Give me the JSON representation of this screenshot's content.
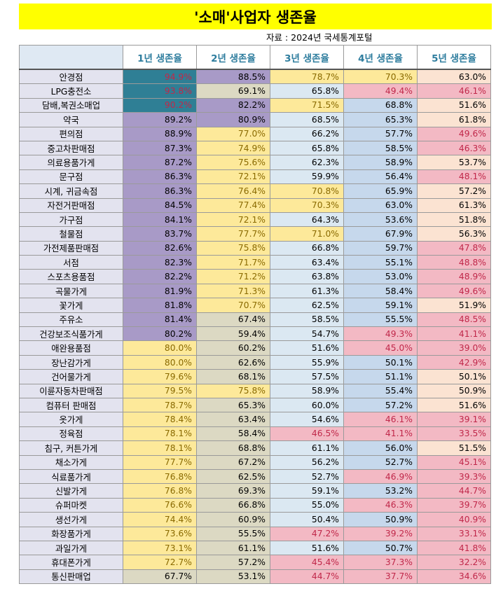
{
  "title": "'소매'사업자 생존율",
  "source": "자료 : 2024년 국세통계포털",
  "headers": [
    "",
    "1년 생존율",
    "2년 생존율",
    "3년 생존율",
    "4년 생존율",
    "5년 생존율"
  ],
  "colors": {
    "header_text": "#2e7d9e",
    "teal": "#2f7f95",
    "purple": "#a89ac7",
    "yellow": "#fde99a",
    "yellow_text": "#8a6a00",
    "light_blue": "#dbe8f2",
    "light_blue2": "#c6d8ec",
    "pink": "#f3b9c4",
    "pink_text": "#c0284a",
    "peach": "#fbe3d2",
    "beige": "#dcd9c3",
    "name_bg": "#e3e3ef"
  },
  "rows": [
    {
      "name": "안경점",
      "v": [
        "94.9%",
        "88.5%",
        "78.7%",
        "70.3%",
        "63.0%"
      ],
      "c": [
        "teal",
        "purple",
        "yellow",
        "yellow",
        "peach"
      ]
    },
    {
      "name": "LPG충전소",
      "v": [
        "93.8%",
        "69.1%",
        "65.8%",
        "49.4%",
        "46.1%"
      ],
      "c": [
        "teal",
        "beige",
        "light_blue",
        "pink",
        "pink"
      ]
    },
    {
      "name": "담배,복권소매업",
      "v": [
        "90.2%",
        "82.2%",
        "71.5%",
        "68.8%",
        "51.6%"
      ],
      "c": [
        "teal",
        "purple",
        "yellow",
        "light_blue2",
        "peach"
      ]
    },
    {
      "name": "약국",
      "v": [
        "89.2%",
        "80.9%",
        "68.5%",
        "65.3%",
        "61.8%"
      ],
      "c": [
        "purple",
        "purple",
        "light_blue",
        "light_blue2",
        "peach"
      ]
    },
    {
      "name": "편의점",
      "v": [
        "88.9%",
        "77.0%",
        "66.2%",
        "57.7%",
        "49.6%"
      ],
      "c": [
        "purple",
        "yellow",
        "light_blue",
        "light_blue2",
        "pink"
      ]
    },
    {
      "name": "중고차판매점",
      "v": [
        "87.3%",
        "74.9%",
        "65.8%",
        "58.5%",
        "46.3%"
      ],
      "c": [
        "purple",
        "yellow",
        "light_blue",
        "light_blue2",
        "pink"
      ]
    },
    {
      "name": "의료용품가게",
      "v": [
        "87.2%",
        "75.6%",
        "62.3%",
        "58.9%",
        "53.7%"
      ],
      "c": [
        "purple",
        "yellow",
        "light_blue",
        "light_blue2",
        "peach"
      ]
    },
    {
      "name": "문구점",
      "v": [
        "86.3%",
        "72.1%",
        "59.9%",
        "56.4%",
        "48.1%"
      ],
      "c": [
        "purple",
        "yellow",
        "light_blue",
        "light_blue2",
        "pink"
      ]
    },
    {
      "name": "시계, 귀금속점",
      "v": [
        "86.3%",
        "76.4%",
        "70.8%",
        "65.9%",
        "57.2%"
      ],
      "c": [
        "purple",
        "yellow",
        "yellow",
        "light_blue2",
        "peach"
      ]
    },
    {
      "name": "자전거판매점",
      "v": [
        "84.5%",
        "77.4%",
        "70.3%",
        "63.0%",
        "61.3%"
      ],
      "c": [
        "purple",
        "yellow",
        "yellow",
        "light_blue2",
        "peach"
      ]
    },
    {
      "name": "가구점",
      "v": [
        "84.1%",
        "72.1%",
        "64.3%",
        "53.6%",
        "51.8%"
      ],
      "c": [
        "purple",
        "yellow",
        "light_blue",
        "light_blue2",
        "peach"
      ]
    },
    {
      "name": "철물점",
      "v": [
        "83.7%",
        "77.7%",
        "71.0%",
        "67.9%",
        "56.3%"
      ],
      "c": [
        "purple",
        "yellow",
        "yellow",
        "light_blue2",
        "peach"
      ]
    },
    {
      "name": "가전제품판매점",
      "v": [
        "82.6%",
        "75.8%",
        "66.8%",
        "59.7%",
        "47.8%"
      ],
      "c": [
        "purple",
        "yellow",
        "light_blue",
        "light_blue2",
        "pink"
      ]
    },
    {
      "name": "서점",
      "v": [
        "82.3%",
        "71.7%",
        "63.4%",
        "55.1%",
        "48.8%"
      ],
      "c": [
        "purple",
        "yellow",
        "light_blue",
        "light_blue2",
        "pink"
      ]
    },
    {
      "name": "스포츠용품점",
      "v": [
        "82.2%",
        "71.2%",
        "63.8%",
        "53.0%",
        "48.9%"
      ],
      "c": [
        "purple",
        "yellow",
        "light_blue",
        "light_blue2",
        "pink"
      ]
    },
    {
      "name": "곡물가게",
      "v": [
        "81.9%",
        "71.3%",
        "61.3%",
        "58.4%",
        "49.6%"
      ],
      "c": [
        "purple",
        "yellow",
        "light_blue",
        "light_blue2",
        "pink"
      ]
    },
    {
      "name": "꽃가게",
      "v": [
        "81.8%",
        "70.7%",
        "62.5%",
        "59.1%",
        "51.9%"
      ],
      "c": [
        "purple",
        "yellow",
        "light_blue",
        "light_blue2",
        "peach"
      ]
    },
    {
      "name": "주유소",
      "v": [
        "81.4%",
        "67.4%",
        "58.5%",
        "55.5%",
        "48.5%"
      ],
      "c": [
        "purple",
        "beige",
        "light_blue",
        "light_blue2",
        "pink"
      ]
    },
    {
      "name": "건강보조식품가게",
      "v": [
        "80.2%",
        "59.4%",
        "54.7%",
        "49.3%",
        "41.1%"
      ],
      "c": [
        "purple",
        "beige",
        "light_blue",
        "pink",
        "pink"
      ]
    },
    {
      "name": "애완용품점",
      "v": [
        "80.0%",
        "60.2%",
        "51.6%",
        "45.0%",
        "39.0%"
      ],
      "c": [
        "yellow",
        "beige",
        "light_blue",
        "pink",
        "pink"
      ]
    },
    {
      "name": "장난감가게",
      "v": [
        "80.0%",
        "62.6%",
        "55.9%",
        "50.1%",
        "42.9%"
      ],
      "c": [
        "yellow",
        "beige",
        "light_blue",
        "light_blue2",
        "pink"
      ]
    },
    {
      "name": "건어물가게",
      "v": [
        "79.6%",
        "68.1%",
        "57.5%",
        "51.1%",
        "50.1%"
      ],
      "c": [
        "yellow",
        "beige",
        "light_blue",
        "light_blue2",
        "peach"
      ]
    },
    {
      "name": "이륜자동차판매점",
      "v": [
        "79.5%",
        "75.8%",
        "58.9%",
        "55.4%",
        "50.9%"
      ],
      "c": [
        "yellow",
        "yellow",
        "light_blue",
        "light_blue2",
        "peach"
      ]
    },
    {
      "name": "컴퓨터 판매점",
      "v": [
        "78.7%",
        "65.3%",
        "60.0%",
        "57.2%",
        "51.6%"
      ],
      "c": [
        "yellow",
        "beige",
        "light_blue",
        "light_blue2",
        "peach"
      ]
    },
    {
      "name": "옷가게",
      "v": [
        "78.4%",
        "63.4%",
        "54.6%",
        "46.1%",
        "39.1%"
      ],
      "c": [
        "yellow",
        "beige",
        "light_blue",
        "pink",
        "pink"
      ]
    },
    {
      "name": "정육점",
      "v": [
        "78.1%",
        "58.4%",
        "46.5%",
        "41.1%",
        "33.5%"
      ],
      "c": [
        "yellow",
        "beige",
        "pink",
        "pink",
        "pink"
      ]
    },
    {
      "name": "침구, 커튼가게",
      "v": [
        "78.1%",
        "68.8%",
        "61.1%",
        "56.0%",
        "51.5%"
      ],
      "c": [
        "yellow",
        "beige",
        "light_blue",
        "light_blue2",
        "peach"
      ]
    },
    {
      "name": "채소가게",
      "v": [
        "77.7%",
        "67.2%",
        "56.2%",
        "52.7%",
        "45.1%"
      ],
      "c": [
        "yellow",
        "beige",
        "light_blue",
        "light_blue2",
        "pink"
      ]
    },
    {
      "name": "식료품가게",
      "v": [
        "76.8%",
        "62.5%",
        "52.7%",
        "46.9%",
        "39.3%"
      ],
      "c": [
        "yellow",
        "beige",
        "light_blue",
        "pink",
        "pink"
      ]
    },
    {
      "name": "신발가게",
      "v": [
        "76.8%",
        "69.3%",
        "59.1%",
        "53.2%",
        "44.7%"
      ],
      "c": [
        "yellow",
        "beige",
        "light_blue",
        "light_blue2",
        "pink"
      ]
    },
    {
      "name": "슈퍼마켓",
      "v": [
        "76.6%",
        "66.8%",
        "55.0%",
        "46.3%",
        "39.7%"
      ],
      "c": [
        "yellow",
        "beige",
        "light_blue",
        "pink",
        "pink"
      ]
    },
    {
      "name": "생선가게",
      "v": [
        "74.4%",
        "60.9%",
        "50.4%",
        "50.9%",
        "40.9%"
      ],
      "c": [
        "yellow",
        "beige",
        "light_blue",
        "light_blue2",
        "pink"
      ]
    },
    {
      "name": "화장품가게",
      "v": [
        "73.6%",
        "55.5%",
        "47.2%",
        "39.2%",
        "33.1%"
      ],
      "c": [
        "yellow",
        "beige",
        "pink",
        "pink",
        "pink"
      ]
    },
    {
      "name": "과일가게",
      "v": [
        "73.1%",
        "61.1%",
        "51.6%",
        "50.7%",
        "41.8%"
      ],
      "c": [
        "yellow",
        "beige",
        "light_blue",
        "light_blue2",
        "pink"
      ]
    },
    {
      "name": "휴대폰가게",
      "v": [
        "72.7%",
        "57.2%",
        "45.4%",
        "37.3%",
        "32.2%"
      ],
      "c": [
        "yellow",
        "beige",
        "pink",
        "pink",
        "pink"
      ]
    },
    {
      "name": "통신판매업",
      "v": [
        "67.7%",
        "53.1%",
        "44.7%",
        "37.7%",
        "34.6%"
      ],
      "c": [
        "beige",
        "beige",
        "pink",
        "pink",
        "pink"
      ]
    }
  ]
}
